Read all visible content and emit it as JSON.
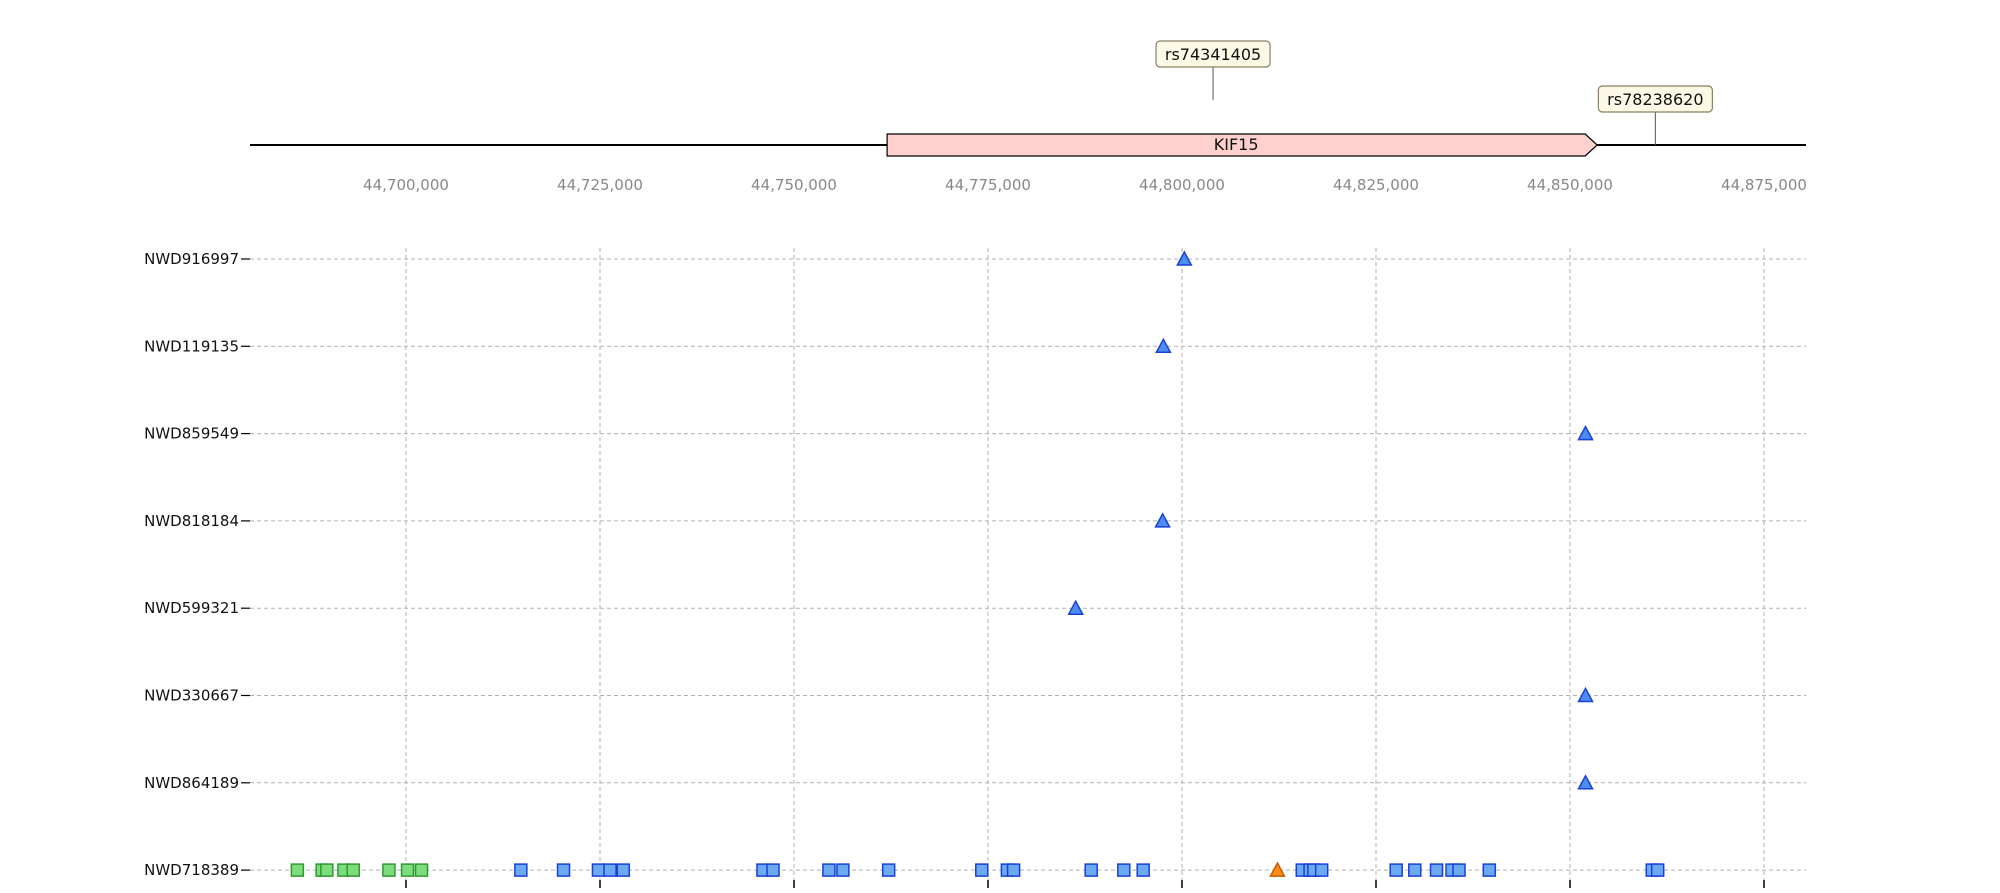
{
  "chart_data": {
    "type": "scatter",
    "gene_track": {
      "region": [
        44680000,
        44880000
      ],
      "ticks": [
        44700000,
        44725000,
        44750000,
        44775000,
        44800000,
        44825000,
        44850000,
        44875000
      ],
      "tick_labels": [
        "44,700,000",
        "44,725,000",
        "44,750,000",
        "44,775,000",
        "44,800,000",
        "44,825,000",
        "44,850,000",
        "44,875,000"
      ],
      "gene": {
        "name": "KIF15",
        "start": 44762000,
        "end": 44853500,
        "strand": "+",
        "color": "#ffd0cc"
      },
      "snps": [
        {
          "id": "rs74341405",
          "position": 44804000
        },
        {
          "id": "rs78238620",
          "position": 44861000
        }
      ]
    },
    "samples": [
      "NWD916997",
      "NWD119135",
      "NWD859549",
      "NWD818184",
      "NWD599321",
      "NWD330667",
      "NWD864189",
      "NWD718389"
    ],
    "triangle_points": [
      {
        "sample": "NWD916997",
        "x": 44800300,
        "color": "#4d8df0"
      },
      {
        "sample": "NWD119135",
        "x": 44797600,
        "color": "#4d8df0"
      },
      {
        "sample": "NWD859549",
        "x": 44852000,
        "color": "#4d8df0"
      },
      {
        "sample": "NWD818184",
        "x": 44797500,
        "color": "#4d8df0"
      },
      {
        "sample": "NWD599321",
        "x": 44786300,
        "color": "#4d8df0"
      },
      {
        "sample": "NWD330667",
        "x": 44852000,
        "color": "#4d8df0"
      },
      {
        "sample": "NWD864189",
        "x": 44852000,
        "color": "#4d8df0"
      },
      {
        "sample": "NWD718389",
        "x": 44812300,
        "color": "#ff8c1a"
      }
    ],
    "square_points": {
      "sample": "NWD718389",
      "green": [
        44686000,
        44689200,
        44689800,
        44692000,
        44693200,
        44697800,
        44700200,
        44702000
      ],
      "blue": [
        44714800,
        44720300,
        44724800,
        44726300,
        44728000,
        44746000,
        44747300,
        44754500,
        44756300,
        44762200,
        44774200,
        44777500,
        44778300,
        44788300,
        44792500,
        44795000,
        44815500,
        44816500,
        44817000,
        44818000,
        44827600,
        44830000,
        44832800,
        44834800,
        44835700,
        44839600,
        44860600,
        44861300
      ]
    },
    "colors": {
      "green": "#7ddc7d",
      "blue": "#6aaaf0",
      "orange": "#ff8c1a"
    },
    "grid": true
  }
}
